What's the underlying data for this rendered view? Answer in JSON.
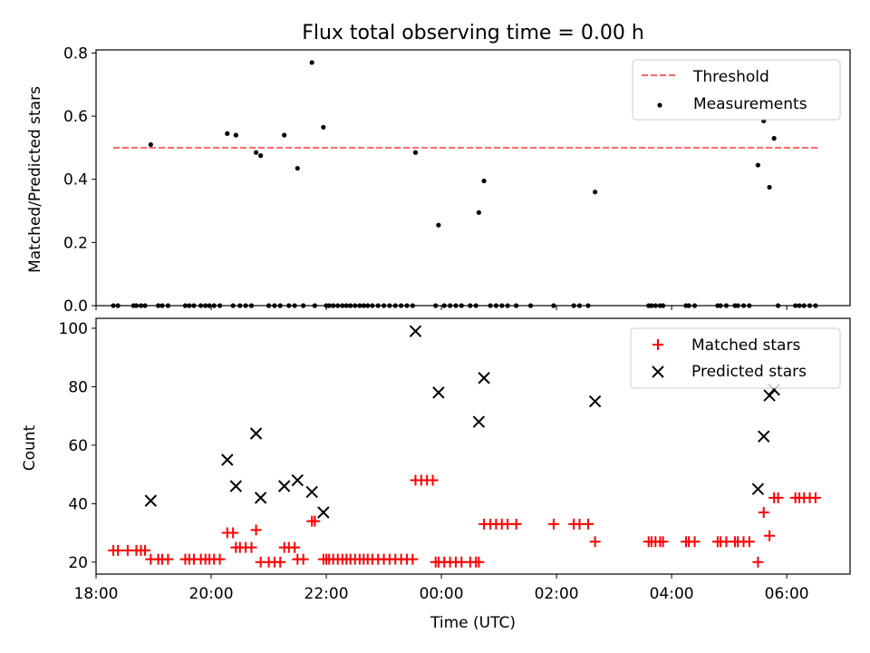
{
  "chart_data": [
    {
      "type": "scatter",
      "title": "Flux total observing time = 0.00 h",
      "xlabel": "",
      "ylabel": "Matched/Predicted stars",
      "xlim": [
        18.0,
        31.1
      ],
      "ylim": [
        0,
        0.81
      ],
      "x_ticks": [
        18,
        20,
        22,
        24,
        26,
        28,
        30
      ],
      "y_ticks": [
        {
          "v": 0.0,
          "label": "0.0"
        },
        {
          "v": 0.2,
          "label": "0.2"
        },
        {
          "v": 0.4,
          "label": "0.4"
        },
        {
          "v": 0.6,
          "label": "0.6"
        },
        {
          "v": 0.8,
          "label": "0.8"
        }
      ],
      "legend": "top-right",
      "legend_labels": {
        "threshold": "Threshold",
        "measurements": "Measurements"
      },
      "threshold": {
        "value": 0.5,
        "x_range": [
          18.3,
          30.55
        ],
        "color": "#ff6666"
      },
      "measurements": {
        "color": "#000000",
        "x": [
          18.95,
          20.28,
          20.43,
          20.78,
          20.86,
          21.27,
          21.5,
          21.75,
          21.95,
          23.55,
          23.95,
          24.65,
          24.74,
          26.67,
          25.55,
          29.5,
          29.6,
          29.7,
          29.78
        ],
        "y": [
          0.51,
          0.545,
          0.54,
          0.485,
          0.475,
          0.54,
          0.435,
          0.77,
          0.565,
          0.485,
          0.255,
          0.295,
          0.395,
          0.36,
          0.0,
          0.445,
          0.585,
          0.375,
          0.53
        ]
      },
      "zeros": {
        "x": [
          18.3,
          18.38,
          18.65,
          18.7,
          18.78,
          18.85,
          19.08,
          19.15,
          19.25,
          19.55,
          19.62,
          19.7,
          19.82,
          19.9,
          19.97,
          20.05,
          20.15,
          20.38,
          20.5,
          20.6,
          20.7,
          21.0,
          21.1,
          21.2,
          21.35,
          21.45,
          21.6,
          21.8,
          22.0,
          22.05,
          22.12,
          22.2,
          22.28,
          22.35,
          22.42,
          22.5,
          22.58,
          22.65,
          22.72,
          22.8,
          22.9,
          23.0,
          23.1,
          23.2,
          23.3,
          23.4,
          23.5,
          23.9,
          24.05,
          24.15,
          24.25,
          24.35,
          24.5,
          24.6,
          24.85,
          24.95,
          25.05,
          25.15,
          25.3,
          25.95,
          26.3,
          26.4,
          26.55,
          27.6,
          27.65,
          27.72,
          27.8,
          27.85,
          28.25,
          28.3,
          28.4,
          28.8,
          28.85,
          28.95,
          29.1,
          29.15,
          29.25,
          29.35,
          29.85,
          30.15,
          30.22,
          30.3,
          30.4,
          30.5
        ],
        "value": 0
      }
    },
    {
      "type": "scatter",
      "title": "",
      "xlabel": "Time (UTC)",
      "ylabel": "Count",
      "xlim": [
        18.0,
        31.1
      ],
      "ylim": [
        15.9,
        103.4
      ],
      "x_ticks": [
        {
          "v": 18,
          "label": "18:00"
        },
        {
          "v": 20,
          "label": "20:00"
        },
        {
          "v": 22,
          "label": "22:00"
        },
        {
          "v": 24,
          "label": "00:00"
        },
        {
          "v": 26,
          "label": "02:00"
        },
        {
          "v": 28,
          "label": "04:00"
        },
        {
          "v": 30,
          "label": "06:00"
        }
      ],
      "y_ticks": [
        {
          "v": 20,
          "label": "20"
        },
        {
          "v": 40,
          "label": "40"
        },
        {
          "v": 60,
          "label": "60"
        },
        {
          "v": 80,
          "label": "80"
        },
        {
          "v": 100,
          "label": "100"
        }
      ],
      "legend": "top-right",
      "series": [
        {
          "name": "Matched stars",
          "marker": "plus",
          "color": "#ff0000",
          "x": [
            18.3,
            18.38,
            18.55,
            18.7,
            18.78,
            18.85,
            18.95,
            19.08,
            19.15,
            19.25,
            19.55,
            19.62,
            19.7,
            19.82,
            19.9,
            19.97,
            20.05,
            20.15,
            20.28,
            20.38,
            20.43,
            20.5,
            20.6,
            20.7,
            20.78,
            20.86,
            21.0,
            21.1,
            21.2,
            21.27,
            21.35,
            21.45,
            21.5,
            21.6,
            21.75,
            21.8,
            21.95,
            22.0,
            22.05,
            22.12,
            22.2,
            22.28,
            22.35,
            22.42,
            22.5,
            22.58,
            22.65,
            22.72,
            22.8,
            22.9,
            23.0,
            23.1,
            23.2,
            23.3,
            23.4,
            23.5,
            23.55,
            23.65,
            23.75,
            23.85,
            23.9,
            23.95,
            24.05,
            24.15,
            24.25,
            24.35,
            24.5,
            24.6,
            24.65,
            24.74,
            24.85,
            24.95,
            25.05,
            25.15,
            25.3,
            25.95,
            26.3,
            26.4,
            26.55,
            26.67,
            27.6,
            27.65,
            27.72,
            27.8,
            27.85,
            28.25,
            28.3,
            28.4,
            28.8,
            28.85,
            28.95,
            29.1,
            29.15,
            29.25,
            29.35,
            29.5,
            29.6,
            29.7,
            29.78,
            29.85,
            30.15,
            30.22,
            30.3,
            30.4,
            30.5
          ],
          "values": [
            24,
            24,
            24,
            24,
            24,
            24,
            21,
            21,
            21,
            21,
            21,
            21,
            21,
            21,
            21,
            21,
            21,
            21,
            30,
            30,
            25,
            25,
            25,
            25,
            31,
            20,
            20,
            20,
            20,
            25,
            25,
            25,
            21,
            21,
            34,
            34,
            21,
            21,
            21,
            21,
            21,
            21,
            21,
            21,
            21,
            21,
            21,
            21,
            21,
            21,
            21,
            21,
            21,
            21,
            21,
            21,
            48,
            48,
            48,
            48,
            20,
            20,
            20,
            20,
            20,
            20,
            20,
            20,
            20,
            33,
            33,
            33,
            33,
            33,
            33,
            33,
            33,
            33,
            33,
            27,
            27,
            27,
            27,
            27,
            27,
            27,
            27,
            27,
            27,
            27,
            27,
            27,
            27,
            27,
            27,
            20,
            37,
            29,
            42,
            42,
            42,
            42,
            42,
            42,
            42
          ]
        },
        {
          "name": "Predicted stars",
          "marker": "x",
          "color": "#000000",
          "x": [
            18.95,
            20.28,
            20.43,
            20.78,
            20.86,
            21.27,
            21.5,
            21.75,
            21.95,
            23.55,
            23.95,
            24.65,
            24.74,
            26.67,
            29.5,
            29.6,
            29.7,
            29.78
          ],
          "values": [
            41,
            55,
            46,
            64,
            42,
            46,
            48,
            44,
            37,
            99,
            78,
            68,
            83,
            75,
            45,
            63,
            77,
            79
          ]
        }
      ]
    }
  ]
}
